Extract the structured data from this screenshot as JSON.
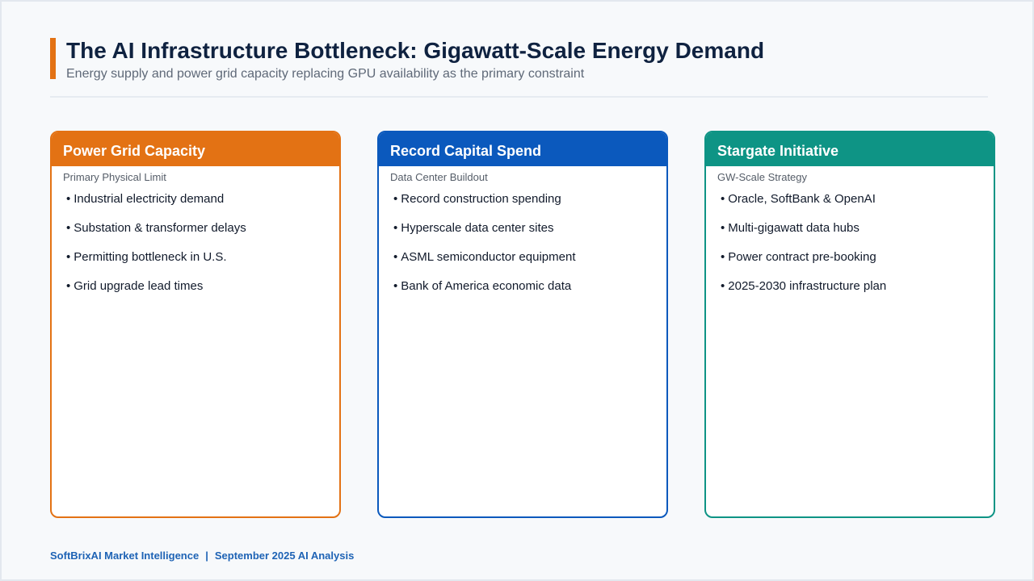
{
  "slide": {
    "title": "The AI Infrastructure Bottleneck: Gigawatt-Scale Energy Demand",
    "subtitle": "Energy supply and power grid capacity replacing GPU availability as the primary constraint",
    "accent_color": "#e37214"
  },
  "cards": [
    {
      "header": "Power Grid Capacity",
      "subheader": "Primary Physical Limit",
      "color": "#e37214",
      "items": [
        "Industrial electricity demand",
        "Substation & transformer delays",
        "Permitting bottleneck in U.S.",
        "Grid upgrade lead times"
      ]
    },
    {
      "header": "Record Capital Spend",
      "subheader": "Data Center Buildout",
      "color": "#0b59bd",
      "items": [
        "Record construction spending",
        "Hyperscale data center sites",
        "ASML semiconductor equipment",
        "Bank of America economic data"
      ]
    },
    {
      "header": "Stargate Initiative",
      "subheader": "GW-Scale Strategy",
      "color": "#0e9485",
      "items": [
        "Oracle, SoftBank & OpenAI",
        "Multi-gigawatt data hubs",
        "Power contract pre-booking",
        "2025-2030 infrastructure plan"
      ]
    }
  ],
  "footer": {
    "source": "SoftBrixAI Market Intelligence",
    "separator": "|",
    "date": "September 2025 AI Analysis"
  }
}
